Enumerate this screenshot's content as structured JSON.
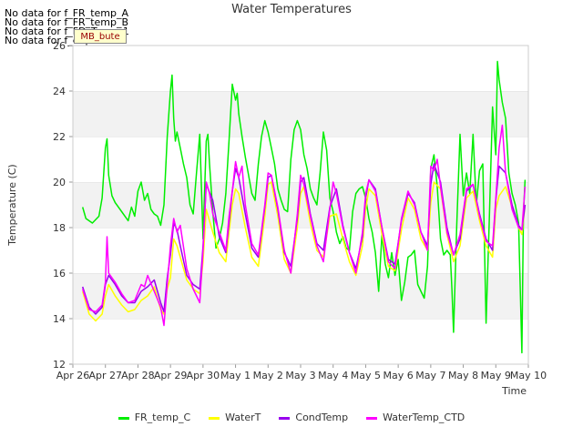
{
  "chart_data": {
    "type": "line",
    "title": "Water Temperatures",
    "xlabel": "Time",
    "ylabel": "Temperature (C)",
    "ylim": [
      12,
      26
    ],
    "xlim": [
      0,
      14
    ],
    "yticks": [
      12,
      14,
      16,
      18,
      20,
      22,
      24,
      26
    ],
    "xtick_labels": [
      "Apr 26",
      "Apr 27",
      "Apr 28",
      "Apr 29",
      "Apr 30",
      "May 1",
      "May 2",
      "May 3",
      "May 4",
      "May 5",
      "May 6",
      "May 7",
      "May 8",
      "May 9",
      "May 10"
    ],
    "grid": "horizontal bands",
    "legend": "bottom-center",
    "no_data_messages": [
      "No data for f_FR_temp_A",
      "No data for f_FR_temp_B",
      "No data for f_FD_Temp_1",
      "No data for f_edp_bute"
    ],
    "annotation": "MB_bute",
    "series": [
      {
        "name": "FR_temp_C",
        "color": "#00ee00",
        "x": [
          0.3,
          0.4,
          0.6,
          0.8,
          0.9,
          1.0,
          1.05,
          1.1,
          1.2,
          1.3,
          1.5,
          1.7,
          1.8,
          1.9,
          2.0,
          2.1,
          2.2,
          2.3,
          2.4,
          2.5,
          2.6,
          2.7,
          2.8,
          2.9,
          3.0,
          3.05,
          3.1,
          3.15,
          3.2,
          3.3,
          3.4,
          3.5,
          3.6,
          3.7,
          3.8,
          3.9,
          4.0,
          4.1,
          4.15,
          4.2,
          4.3,
          4.4,
          4.5,
          4.6,
          4.7,
          4.8,
          4.9,
          5.0,
          5.05,
          5.1,
          5.2,
          5.3,
          5.4,
          5.5,
          5.6,
          5.7,
          5.8,
          5.9,
          6.0,
          6.1,
          6.2,
          6.3,
          6.4,
          6.5,
          6.6,
          6.7,
          6.8,
          6.9,
          7.0,
          7.1,
          7.2,
          7.3,
          7.4,
          7.5,
          7.6,
          7.7,
          7.8,
          7.9,
          8.0,
          8.1,
          8.2,
          8.3,
          8.4,
          8.5,
          8.6,
          8.7,
          8.8,
          8.9,
          9.0,
          9.1,
          9.2,
          9.3,
          9.4,
          9.5,
          9.6,
          9.7,
          9.8,
          9.9,
          10.0,
          10.1,
          10.2,
          10.3,
          10.4,
          10.5,
          10.6,
          10.7,
          10.8,
          10.9,
          11.0,
          11.1,
          11.2,
          11.3,
          11.4,
          11.5,
          11.6,
          11.65,
          11.7,
          11.8,
          11.9,
          12.0,
          12.1,
          12.2,
          12.3,
          12.4,
          12.5,
          12.6,
          12.7,
          12.8,
          12.9,
          13.0,
          13.05,
          13.1,
          13.2,
          13.3,
          13.4,
          13.5,
          13.6,
          13.7,
          13.8,
          13.85,
          13.9
        ],
        "values": [
          18.9,
          18.4,
          18.2,
          18.5,
          19.3,
          21.5,
          21.9,
          20.3,
          19.4,
          19.1,
          18.7,
          18.3,
          18.9,
          18.5,
          19.6,
          20.0,
          19.2,
          19.5,
          18.8,
          18.6,
          18.5,
          18.1,
          19.0,
          22.0,
          24.0,
          24.7,
          22.8,
          21.8,
          22.2,
          21.5,
          20.8,
          20.2,
          19.0,
          18.6,
          20.4,
          22.1,
          17.5,
          21.8,
          22.1,
          20.8,
          18.7,
          17.1,
          17.5,
          18.2,
          19.5,
          21.8,
          24.3,
          23.6,
          23.9,
          23.0,
          22.0,
          21.1,
          20.3,
          19.5,
          19.2,
          20.8,
          22.0,
          22.7,
          22.2,
          21.5,
          20.8,
          19.7,
          19.2,
          18.8,
          18.7,
          21.0,
          22.3,
          22.7,
          22.3,
          21.2,
          20.6,
          19.7,
          19.3,
          19.0,
          20.4,
          22.2,
          21.4,
          19.3,
          18.7,
          17.8,
          17.3,
          17.6,
          17.1,
          17.0,
          18.7,
          19.5,
          19.7,
          19.8,
          19.3,
          18.4,
          17.8,
          16.9,
          15.2,
          17.7,
          16.4,
          15.8,
          16.9,
          15.9,
          16.6,
          14.8,
          15.6,
          16.7,
          16.8,
          17.0,
          15.5,
          15.2,
          14.9,
          16.3,
          20.6,
          21.2,
          19.8,
          17.5,
          16.8,
          17.0,
          16.8,
          15.3,
          13.4,
          18.1,
          22.1,
          19.4,
          20.4,
          19.5,
          22.1,
          19.0,
          20.5,
          20.8,
          13.8,
          18.3,
          23.3,
          21.2,
          25.3,
          24.5,
          23.5,
          22.8,
          20.4,
          19.5,
          19.0,
          18.2,
          12.5,
          18.6,
          20.1
        ]
      },
      {
        "name": "WaterT",
        "color": "#ffff00",
        "x": [
          0.3,
          0.5,
          0.7,
          0.9,
          1.0,
          1.1,
          1.3,
          1.5,
          1.7,
          1.9,
          2.1,
          2.3,
          2.5,
          2.7,
          2.8,
          2.9,
          3.0,
          3.1,
          3.2,
          3.3,
          3.5,
          3.7,
          3.9,
          4.0,
          4.1,
          4.3,
          4.5,
          4.7,
          4.8,
          4.9,
          5.0,
          5.1,
          5.3,
          5.5,
          5.7,
          5.9,
          6.0,
          6.1,
          6.3,
          6.5,
          6.7,
          6.9,
          7.0,
          7.1,
          7.3,
          7.5,
          7.7,
          7.9,
          8.1,
          8.3,
          8.5,
          8.7,
          8.9,
          9.0,
          9.1,
          9.3,
          9.5,
          9.7,
          9.9,
          10.1,
          10.3,
          10.5,
          10.7,
          10.9,
          11.0,
          11.1,
          11.3,
          11.5,
          11.7,
          11.9,
          12.1,
          12.3,
          12.5,
          12.7,
          12.9,
          13.0,
          13.1,
          13.3,
          13.5,
          13.7,
          13.8,
          13.9
        ],
        "values": [
          15.2,
          14.2,
          13.9,
          14.2,
          15.0,
          15.5,
          15.0,
          14.6,
          14.3,
          14.4,
          14.8,
          15.0,
          15.4,
          14.4,
          14.2,
          15.3,
          15.8,
          17.5,
          17.2,
          16.7,
          15.7,
          15.3,
          15.1,
          16.5,
          18.8,
          17.8,
          16.9,
          16.5,
          17.8,
          19.0,
          19.7,
          19.5,
          18.0,
          16.7,
          16.3,
          18.5,
          19.9,
          20.0,
          18.5,
          16.6,
          16.0,
          18.0,
          19.5,
          19.8,
          18.2,
          17.0,
          16.7,
          18.5,
          18.6,
          17.5,
          16.5,
          15.9,
          17.2,
          18.8,
          19.7,
          19.4,
          17.7,
          16.3,
          16.1,
          17.9,
          19.3,
          18.8,
          17.5,
          17.0,
          19.1,
          20.0,
          19.7,
          17.7,
          16.5,
          17.2,
          19.3,
          19.6,
          18.3,
          17.2,
          16.7,
          18.8,
          19.4,
          19.8,
          18.9,
          18.0,
          17.7,
          19.0
        ]
      },
      {
        "name": "CondTemp",
        "color": "#9900ee",
        "x": [
          0.3,
          0.5,
          0.7,
          0.9,
          1.0,
          1.1,
          1.3,
          1.5,
          1.7,
          1.9,
          2.1,
          2.3,
          2.5,
          2.7,
          2.8,
          2.9,
          3.0,
          3.1,
          3.2,
          3.3,
          3.5,
          3.7,
          3.9,
          4.0,
          4.1,
          4.3,
          4.5,
          4.7,
          4.8,
          4.9,
          5.0,
          5.1,
          5.3,
          5.5,
          5.7,
          5.9,
          6.0,
          6.1,
          6.3,
          6.5,
          6.7,
          6.9,
          7.0,
          7.1,
          7.3,
          7.5,
          7.7,
          7.9,
          8.1,
          8.3,
          8.5,
          8.7,
          8.9,
          9.0,
          9.1,
          9.3,
          9.5,
          9.7,
          9.9,
          10.1,
          10.3,
          10.5,
          10.7,
          10.9,
          11.0,
          11.1,
          11.3,
          11.5,
          11.7,
          11.9,
          12.1,
          12.3,
          12.5,
          12.7,
          12.9,
          13.0,
          13.1,
          13.3,
          13.5,
          13.7,
          13.8,
          13.9
        ],
        "values": [
          15.4,
          14.5,
          14.2,
          14.5,
          15.5,
          15.9,
          15.5,
          15.0,
          14.7,
          14.7,
          15.2,
          15.4,
          15.7,
          14.7,
          14.3,
          15.8,
          16.8,
          18.2,
          17.9,
          17.2,
          15.9,
          15.5,
          15.3,
          17.2,
          19.9,
          19.2,
          17.6,
          16.9,
          18.2,
          19.6,
          20.6,
          20.2,
          18.6,
          17.1,
          16.7,
          18.9,
          20.2,
          20.3,
          18.8,
          16.9,
          16.3,
          18.4,
          20.0,
          20.2,
          18.6,
          17.3,
          17.0,
          18.9,
          19.7,
          18.1,
          16.9,
          16.2,
          17.6,
          19.3,
          20.1,
          19.7,
          18.0,
          16.6,
          16.4,
          18.3,
          19.5,
          19.1,
          17.8,
          17.2,
          19.9,
          20.8,
          20.0,
          18.0,
          16.8,
          17.5,
          19.6,
          19.9,
          18.6,
          17.5,
          17.0,
          19.2,
          20.7,
          20.4,
          19.0,
          18.1,
          17.9,
          19.0
        ]
      },
      {
        "name": "WaterTemp_CTD",
        "color": "#ff00ff",
        "x": [
          0.3,
          0.5,
          0.7,
          0.9,
          1.0,
          1.05,
          1.1,
          1.3,
          1.5,
          1.7,
          1.9,
          2.1,
          2.2,
          2.3,
          2.5,
          2.7,
          2.8,
          2.9,
          3.0,
          3.1,
          3.2,
          3.3,
          3.5,
          3.7,
          3.9,
          4.0,
          4.1,
          4.2,
          4.3,
          4.5,
          4.7,
          4.8,
          4.9,
          5.0,
          5.1,
          5.2,
          5.3,
          5.5,
          5.7,
          5.9,
          6.0,
          6.1,
          6.3,
          6.5,
          6.7,
          6.9,
          7.0,
          7.1,
          7.3,
          7.5,
          7.7,
          7.9,
          8.0,
          8.1,
          8.3,
          8.5,
          8.7,
          8.9,
          9.0,
          9.1,
          9.3,
          9.5,
          9.7,
          9.9,
          10.1,
          10.3,
          10.5,
          10.7,
          10.9,
          11.0,
          11.1,
          11.2,
          11.3,
          11.5,
          11.7,
          11.9,
          12.1,
          12.3,
          12.5,
          12.7,
          12.9,
          13.0,
          13.1,
          13.2,
          13.3,
          13.5,
          13.7,
          13.8,
          13.9
        ],
        "values": [
          15.3,
          14.4,
          14.3,
          14.6,
          15.6,
          17.6,
          16.0,
          15.6,
          15.1,
          14.7,
          14.8,
          15.5,
          15.4,
          15.9,
          15.2,
          14.5,
          13.7,
          15.5,
          17.2,
          18.4,
          17.8,
          18.1,
          16.2,
          15.3,
          14.7,
          17.0,
          20.0,
          19.5,
          18.6,
          17.8,
          17.0,
          18.5,
          19.6,
          20.9,
          20.2,
          20.7,
          19.0,
          17.3,
          16.8,
          19.0,
          20.4,
          20.3,
          18.9,
          17.0,
          16.0,
          18.6,
          20.3,
          19.9,
          18.5,
          17.2,
          16.5,
          18.8,
          20.0,
          19.5,
          18.0,
          16.9,
          16.0,
          17.8,
          19.5,
          20.1,
          19.6,
          18.0,
          16.5,
          16.2,
          18.4,
          19.6,
          19.0,
          17.8,
          17.0,
          20.7,
          20.5,
          21.0,
          19.8,
          17.8,
          16.8,
          17.7,
          19.7,
          19.9,
          18.5,
          17.4,
          17.2,
          19.3,
          21.5,
          22.5,
          20.4,
          18.8,
          18.0,
          17.9,
          19.8
        ]
      }
    ]
  }
}
